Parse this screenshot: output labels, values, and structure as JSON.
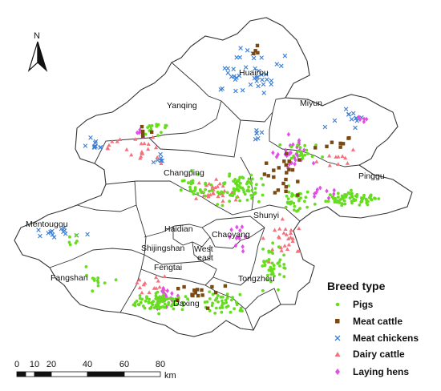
{
  "north_arrow": {
    "label": "N",
    "icon": "north-arrow-icon"
  },
  "districts": [
    {
      "id": "huairou",
      "label": "Huairou"
    },
    {
      "id": "miyun",
      "label": "Miyun"
    },
    {
      "id": "yanqing",
      "label": "Yanqing"
    },
    {
      "id": "changping",
      "label": "Changping"
    },
    {
      "id": "pinggu",
      "label": "Pinggu"
    },
    {
      "id": "shunyi",
      "label": "Shunyi"
    },
    {
      "id": "mentougou",
      "label": "Mentougou"
    },
    {
      "id": "haidian",
      "label": "Haidian"
    },
    {
      "id": "chaoyang",
      "label": "Chaoyang"
    },
    {
      "id": "shijingshan",
      "label": "Shijingshan"
    },
    {
      "id": "west",
      "label": "West"
    },
    {
      "id": "east",
      "label": "east"
    },
    {
      "id": "fengtai",
      "label": "Fengtai"
    },
    {
      "id": "fangshan",
      "label": "Fangshan"
    },
    {
      "id": "tongzhou",
      "label": "Tongzhou"
    },
    {
      "id": "daxing",
      "label": "Daxing"
    }
  ],
  "legend": {
    "title": "Breed type",
    "items": [
      {
        "key": "pigs",
        "label": "Pigs",
        "symbol": "dot",
        "color": "#66dd1e"
      },
      {
        "key": "meat_cattle",
        "label": "Meat cattle",
        "symbol": "square",
        "color": "#7a4a12"
      },
      {
        "key": "meat_chickens",
        "label": "Meat chickens",
        "symbol": "cross",
        "color": "#3a7fd6"
      },
      {
        "key": "dairy_cattle",
        "label": "Dairy cattle",
        "symbol": "triangle",
        "color": "#f2727e"
      },
      {
        "key": "laying_hens",
        "label": "Laying hens",
        "symbol": "diamond",
        "color": "#e14fe6"
      }
    ]
  },
  "scale_bar": {
    "ticks": [
      "0",
      "10",
      "20",
      "40",
      "60",
      "80"
    ],
    "unit": "km"
  },
  "colors": {
    "boundary": "#333333",
    "background": "#ffffff"
  }
}
